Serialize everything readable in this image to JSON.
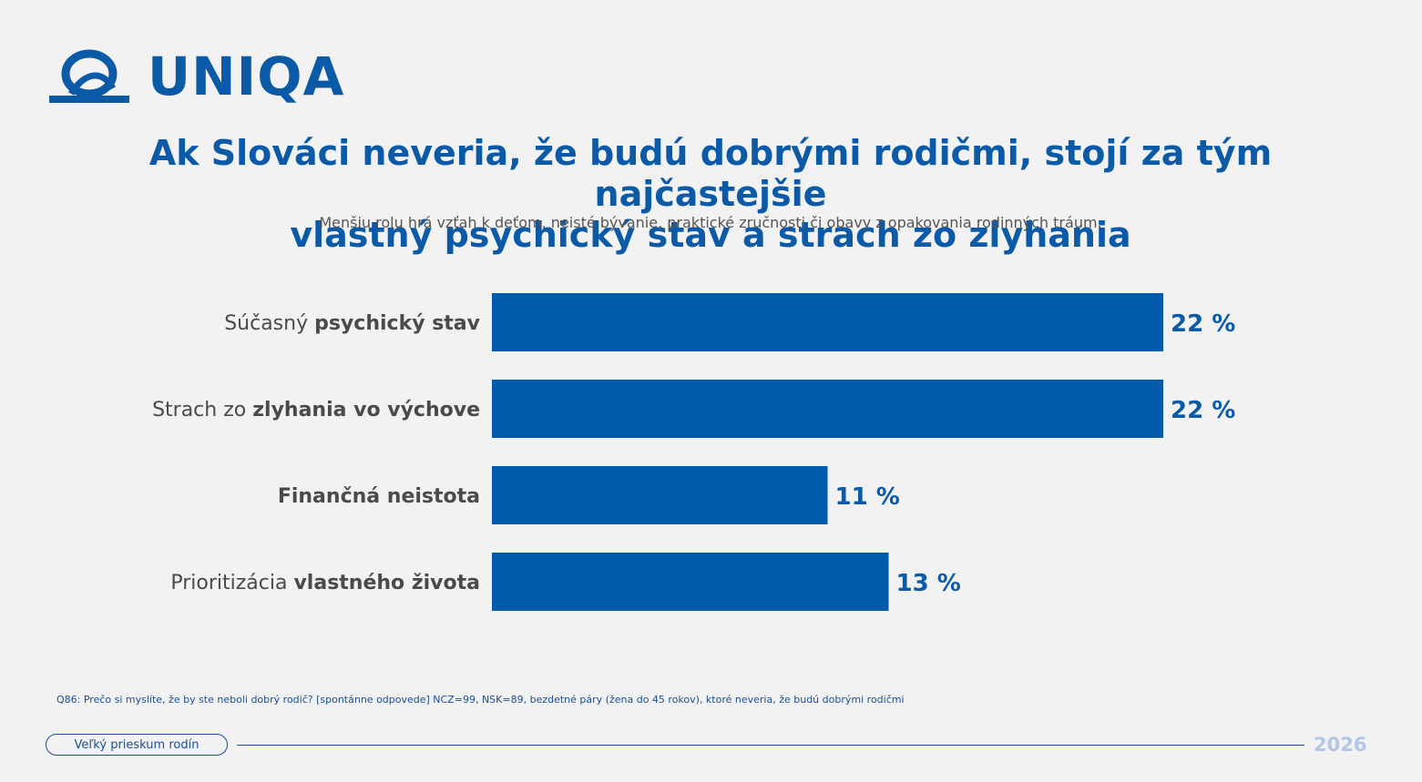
{
  "brand": {
    "name": "UNIQA",
    "color": "#0a5aa8"
  },
  "title_line1": "Ak Slováci neveria, že budú dobrými rodičmi, stojí za tým najčastejšie",
  "title_line2": "vlastný psychický stav a strach zo zlyhania",
  "subtitle": "Menšiu rolu hrá vzťah k deťom, neisté bývanie, praktické zručnosti či obavy z opakovania rodinných tráum.",
  "chart_data": {
    "type": "bar",
    "orientation": "horizontal",
    "categories": [
      {
        "plain": "Súčasný ",
        "bold": "psychický stav"
      },
      {
        "plain": "Strach zo ",
        "bold": "zlyhania vo výchove"
      },
      {
        "plain": "",
        "bold": "Finančná neistota"
      },
      {
        "plain": "Prioritizácia ",
        "bold": "vlastného života"
      }
    ],
    "values": [
      22,
      22,
      11,
      13
    ],
    "value_labels": [
      "22 %",
      "22 %",
      "11 %",
      "13 %"
    ],
    "unit": "%",
    "xlim": [
      0,
      22
    ],
    "bar_color": "#005ca9",
    "label_color": "#0a5aa8",
    "grid": false,
    "legend": "none"
  },
  "footnote": "Q86: Prečo si myslíte, že by ste neboli dobrý rodič? [spontánne odpovede] NCZ=99, NSK=89, bezdetné páry (žena do 45 rokov), ktoré neveria, že budú dobrými rodičmi",
  "footer": {
    "survey_label": "Veľký prieskum rodín",
    "year": "2026"
  }
}
